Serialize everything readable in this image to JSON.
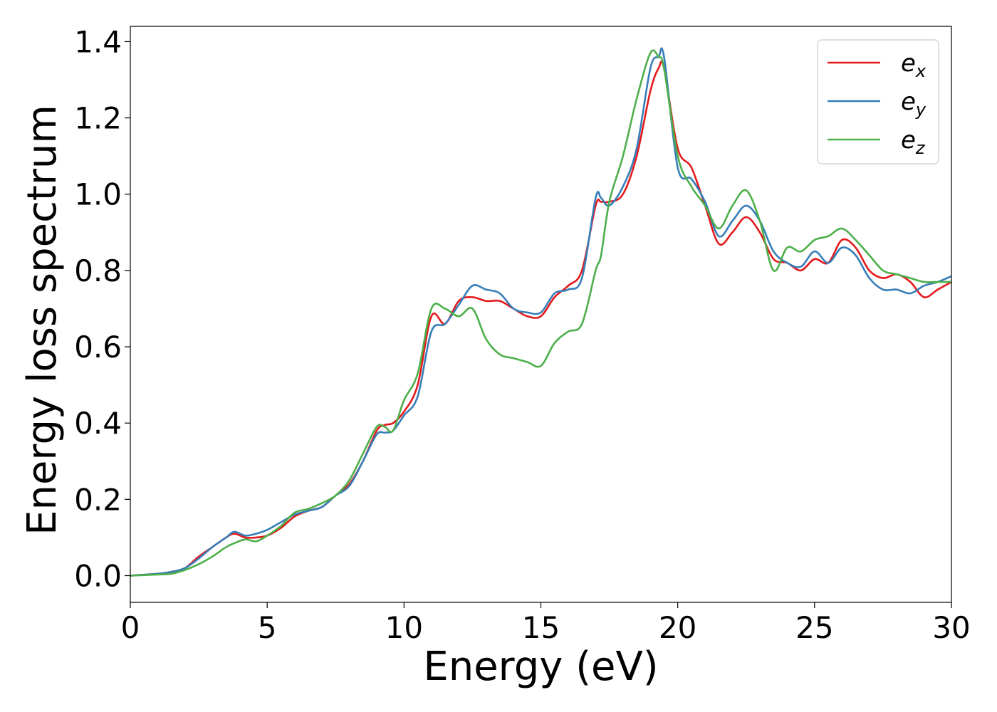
{
  "chart_data": {
    "type": "line",
    "xlabel": "Energy (eV)",
    "ylabel": "Energy loss spectrum",
    "xlim": [
      0,
      30
    ],
    "ylim": [
      -0.07,
      1.44
    ],
    "xticks": [
      0,
      5,
      10,
      15,
      20,
      25,
      30
    ],
    "yticks": [
      0.0,
      0.2,
      0.4,
      0.6,
      0.8,
      1.0,
      1.2,
      1.4
    ],
    "xtick_labels": [
      "0",
      "5",
      "10",
      "15",
      "20",
      "25",
      "30"
    ],
    "ytick_labels": [
      "0.0",
      "0.2",
      "0.4",
      "0.6",
      "0.8",
      "1.0",
      "1.2",
      "1.4"
    ],
    "grid": false,
    "legend_position": "top-right",
    "series": [
      {
        "name": "e_x",
        "label_base": "e",
        "label_sub": "x",
        "color": "#e41a1c",
        "x": [
          0,
          1,
          1.5,
          2,
          2.5,
          3,
          3.5,
          3.8,
          4.2,
          4.6,
          5,
          5.5,
          6,
          6.5,
          7,
          7.5,
          8,
          8.5,
          9,
          9.3,
          9.6,
          10,
          10.5,
          11,
          11.5,
          12,
          12.5,
          13,
          13.5,
          14,
          14.5,
          15,
          15.5,
          16,
          16.5,
          17,
          17.2,
          17.5,
          18,
          18.5,
          19,
          19.3,
          19.5,
          20,
          20.5,
          21,
          21.5,
          22,
          22.5,
          23,
          23.5,
          24,
          24.5,
          25,
          25.5,
          26,
          26.5,
          27,
          27.5,
          28,
          28.5,
          29,
          29.5,
          30
        ],
        "y": [
          0.0,
          0.005,
          0.01,
          0.02,
          0.05,
          0.075,
          0.1,
          0.11,
          0.1,
          0.1,
          0.105,
          0.125,
          0.155,
          0.17,
          0.18,
          0.21,
          0.24,
          0.3,
          0.38,
          0.395,
          0.4,
          0.43,
          0.5,
          0.68,
          0.66,
          0.72,
          0.73,
          0.72,
          0.72,
          0.7,
          0.68,
          0.68,
          0.73,
          0.76,
          0.8,
          0.97,
          0.98,
          0.98,
          1.0,
          1.1,
          1.27,
          1.33,
          1.33,
          1.12,
          1.07,
          0.97,
          0.87,
          0.9,
          0.94,
          0.9,
          0.83,
          0.82,
          0.8,
          0.83,
          0.82,
          0.88,
          0.86,
          0.8,
          0.78,
          0.79,
          0.77,
          0.73,
          0.75,
          0.77
        ]
      },
      {
        "name": "e_y",
        "label_base": "e",
        "label_sub": "y",
        "color": "#377eb8",
        "x": [
          0,
          1,
          1.5,
          2,
          2.5,
          3,
          3.5,
          3.8,
          4.2,
          4.6,
          5,
          5.5,
          6,
          6.5,
          7,
          7.5,
          8,
          8.5,
          9,
          9.3,
          9.6,
          10,
          10.5,
          11,
          11.5,
          12,
          12.5,
          13,
          13.5,
          14,
          14.5,
          15,
          15.5,
          16,
          16.5,
          17,
          17.2,
          17.5,
          18,
          18.5,
          19,
          19.3,
          19.5,
          20,
          20.5,
          21,
          21.5,
          22,
          22.5,
          23,
          23.5,
          24,
          24.5,
          25,
          25.5,
          26,
          26.5,
          27,
          27.5,
          28,
          28.5,
          29,
          29.5,
          30
        ],
        "y": [
          0.0,
          0.005,
          0.01,
          0.02,
          0.045,
          0.075,
          0.1,
          0.115,
          0.105,
          0.11,
          0.12,
          0.14,
          0.16,
          0.17,
          0.18,
          0.21,
          0.235,
          0.3,
          0.37,
          0.375,
          0.38,
          0.42,
          0.47,
          0.64,
          0.66,
          0.71,
          0.76,
          0.75,
          0.74,
          0.7,
          0.69,
          0.69,
          0.74,
          0.75,
          0.78,
          0.99,
          0.99,
          0.97,
          1.02,
          1.12,
          1.33,
          1.36,
          1.36,
          1.07,
          1.04,
          0.98,
          0.89,
          0.93,
          0.97,
          0.93,
          0.85,
          0.82,
          0.81,
          0.85,
          0.82,
          0.86,
          0.84,
          0.78,
          0.75,
          0.75,
          0.74,
          0.76,
          0.77,
          0.785
        ]
      },
      {
        "name": "e_z",
        "label_base": "e",
        "label_sub": "z",
        "color": "#4daf4a",
        "x": [
          0,
          1,
          1.5,
          2,
          2.5,
          3,
          3.5,
          3.8,
          4.2,
          4.6,
          5,
          5.5,
          6,
          6.5,
          7,
          7.5,
          8,
          8.5,
          9,
          9.3,
          9.6,
          10,
          10.5,
          11,
          11.5,
          12,
          12.5,
          13,
          13.5,
          14,
          14.5,
          15,
          15.5,
          16,
          16.5,
          17,
          17.2,
          17.5,
          18,
          18.5,
          19,
          19.3,
          19.5,
          20,
          20.5,
          21,
          21.5,
          22,
          22.5,
          23,
          23.5,
          24,
          24.5,
          25,
          25.5,
          26,
          26.5,
          27,
          27.5,
          28,
          28.5,
          29,
          29.5,
          30
        ],
        "y": [
          0.0,
          0.003,
          0.005,
          0.015,
          0.03,
          0.05,
          0.075,
          0.085,
          0.095,
          0.09,
          0.105,
          0.13,
          0.165,
          0.175,
          0.19,
          0.21,
          0.25,
          0.32,
          0.39,
          0.39,
          0.38,
          0.46,
          0.53,
          0.7,
          0.7,
          0.68,
          0.7,
          0.62,
          0.58,
          0.57,
          0.56,
          0.55,
          0.61,
          0.64,
          0.66,
          0.8,
          0.84,
          0.98,
          1.1,
          1.25,
          1.37,
          1.36,
          1.33,
          1.1,
          1.02,
          0.97,
          0.91,
          0.97,
          1.01,
          0.93,
          0.8,
          0.86,
          0.85,
          0.88,
          0.89,
          0.91,
          0.88,
          0.84,
          0.8,
          0.79,
          0.78,
          0.77,
          0.77,
          0.77
        ]
      }
    ]
  }
}
